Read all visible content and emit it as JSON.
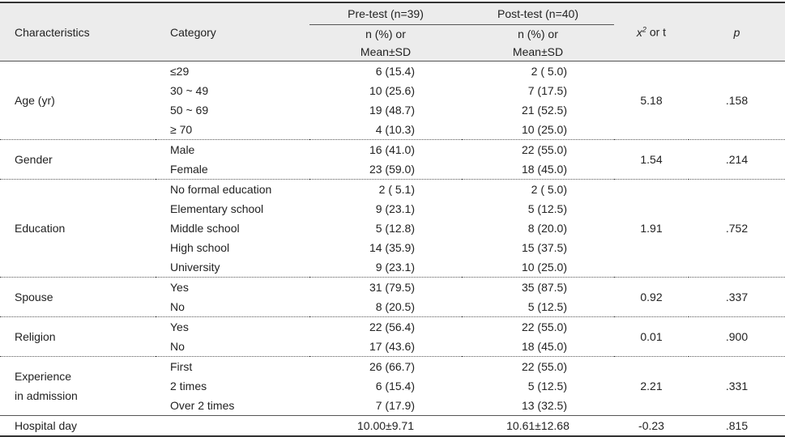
{
  "header": {
    "characteristics": "Characteristics",
    "category": "Category",
    "pre_test": "Pre-test (n=39)",
    "post_test": "Post-test (n=40)",
    "n_percent": "n (%) or",
    "mean_sd": "Mean±SD",
    "stat": "x² or t",
    "p": "p"
  },
  "groups": [
    {
      "name": "Age (yr)",
      "stat": "5.18",
      "p": ".158",
      "rows": [
        {
          "category": "≤29",
          "pre": "6 (15.4)",
          "post": "2 ( 5.0)"
        },
        {
          "category": "30 ~ 49",
          "pre": "10 (25.6)",
          "post": "7 (17.5)"
        },
        {
          "category": "50 ~ 69",
          "pre": "19 (48.7)",
          "post": "21 (52.5)"
        },
        {
          "category": "≥ 70",
          "pre": "4 (10.3)",
          "post": "10 (25.0)"
        }
      ]
    },
    {
      "name": "Gender",
      "stat": "1.54",
      "p": ".214",
      "rows": [
        {
          "category": "Male",
          "pre": "16 (41.0)",
          "post": "22 (55.0)"
        },
        {
          "category": "Female",
          "pre": "23 (59.0)",
          "post": "18 (45.0)"
        }
      ]
    },
    {
      "name": "Education",
      "stat": "1.91",
      "p": ".752",
      "rows": [
        {
          "category": "No formal education",
          "pre": "2 ( 5.1)",
          "post": "2 ( 5.0)"
        },
        {
          "category": "Elementary school",
          "pre": "9 (23.1)",
          "post": "5 (12.5)"
        },
        {
          "category": "Middle school",
          "pre": "5 (12.8)",
          "post": "8 (20.0)"
        },
        {
          "category": "High school",
          "pre": "14 (35.9)",
          "post": "15 (37.5)"
        },
        {
          "category": "University",
          "pre": "9 (23.1)",
          "post": "10 (25.0)"
        }
      ]
    },
    {
      "name": "Spouse",
      "stat": "0.92",
      "p": ".337",
      "rows": [
        {
          "category": "Yes",
          "pre": "31 (79.5)",
          "post": "35 (87.5)"
        },
        {
          "category": "No",
          "pre": "8 (20.5)",
          "post": "5 (12.5)"
        }
      ]
    },
    {
      "name": "Religion",
      "stat": "0.01",
      "p": ".900",
      "rows": [
        {
          "category": "Yes",
          "pre": "22 (56.4)",
          "post": "22 (55.0)"
        },
        {
          "category": "No",
          "pre": "17 (43.6)",
          "post": "18 (45.0)"
        }
      ]
    },
    {
      "name": "Experience\nin admission",
      "stat": "2.21",
      "p": ".331",
      "rows": [
        {
          "category": "First",
          "pre": "26 (66.7)",
          "post": "22 (55.0)"
        },
        {
          "category": "2 times",
          "pre": "6 (15.4)",
          "post": "5 (12.5)"
        },
        {
          "category": "Over 2 times",
          "pre": "7 (17.9)",
          "post": "13 (32.5)"
        }
      ]
    }
  ],
  "hospital_day": {
    "name": "Hospital day",
    "pre": "10.00±9.71",
    "post": "10.61±12.68",
    "stat": "-0.23",
    "p": ".815"
  }
}
